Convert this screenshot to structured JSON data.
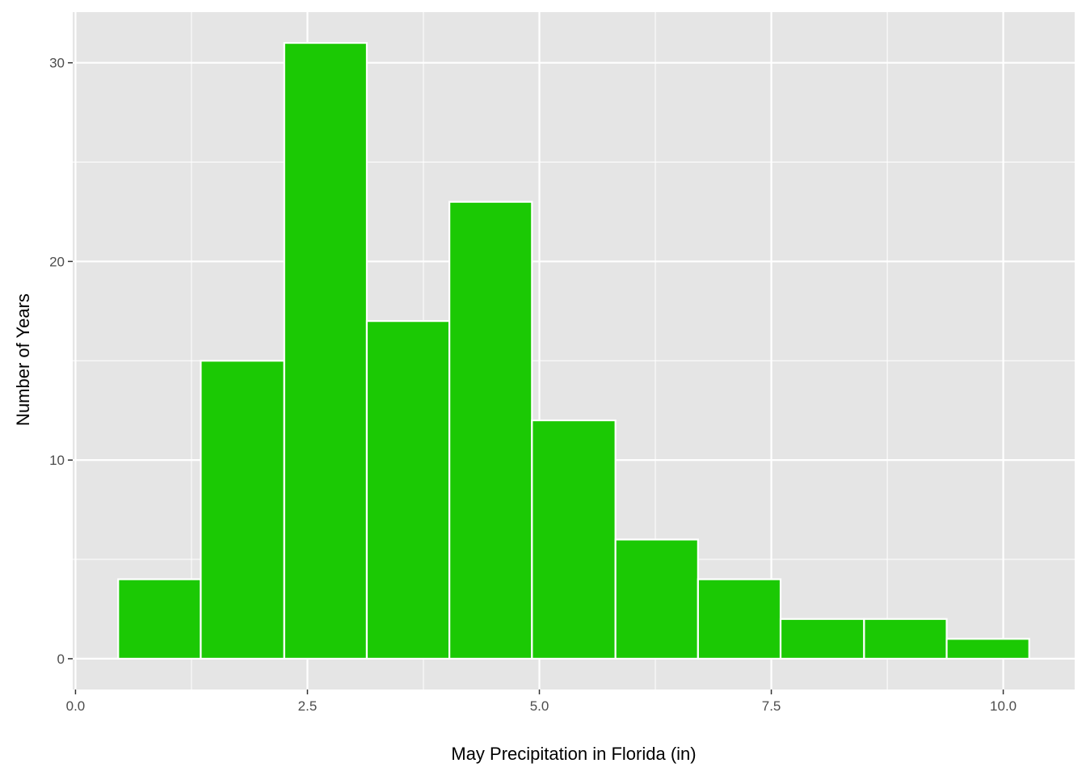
{
  "chart_data": {
    "type": "bar",
    "subtype": "histogram",
    "xlabel": "May Precipitation in Florida (in)",
    "ylabel": "Number of Years",
    "xlim": [
      -0.03,
      10.77
    ],
    "ylim": [
      -1.55,
      32.55
    ],
    "x_ticks": [
      {
        "value": 0,
        "label": "0.0"
      },
      {
        "value": 2.5,
        "label": "2.5"
      },
      {
        "value": 5,
        "label": "5.0"
      },
      {
        "value": 7.5,
        "label": "7.5"
      },
      {
        "value": 10,
        "label": "10.0"
      }
    ],
    "y_ticks": [
      {
        "value": 0,
        "label": "0"
      },
      {
        "value": 10,
        "label": "10"
      },
      {
        "value": 20,
        "label": "20"
      },
      {
        "value": 30,
        "label": "30"
      }
    ],
    "bins": [
      {
        "x0": 0.46,
        "x1": 1.35,
        "count": 4
      },
      {
        "x0": 1.35,
        "x1": 2.25,
        "count": 15
      },
      {
        "x0": 2.25,
        "x1": 3.14,
        "count": 31
      },
      {
        "x0": 3.14,
        "x1": 4.03,
        "count": 17
      },
      {
        "x0": 4.03,
        "x1": 4.92,
        "count": 23
      },
      {
        "x0": 4.92,
        "x1": 5.82,
        "count": 12
      },
      {
        "x0": 5.82,
        "x1": 6.71,
        "count": 6
      },
      {
        "x0": 6.71,
        "x1": 7.6,
        "count": 4
      },
      {
        "x0": 7.6,
        "x1": 8.5,
        "count": 2
      },
      {
        "x0": 8.5,
        "x1": 9.39,
        "count": 2
      },
      {
        "x0": 9.39,
        "x1": 10.28,
        "count": 1
      }
    ],
    "fill_color": "#1BC904",
    "outline_color": "#ffffff",
    "panel_background": "#E5E5E5",
    "grid": true,
    "legend": "none"
  }
}
